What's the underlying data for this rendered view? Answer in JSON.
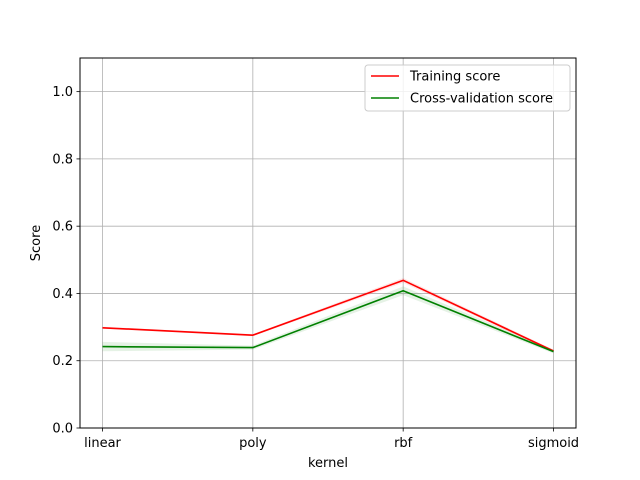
{
  "chart_data": {
    "type": "line",
    "xlabel": "kernel",
    "ylabel": "Score",
    "categories": [
      "linear",
      "poly",
      "rbf",
      "sigmoid"
    ],
    "ylim": [
      0.0,
      1.1
    ],
    "yticks": [
      "0.0",
      "0.2",
      "0.4",
      "0.6",
      "0.8",
      "1.0"
    ],
    "grid": true,
    "legend_position": "top-right",
    "series": [
      {
        "name": "Training score",
        "color": "#ff0000",
        "values": [
          0.298,
          0.276,
          0.439,
          0.229
        ],
        "band": [
          [
            0.295,
            0.301
          ],
          [
            0.273,
            0.279
          ],
          [
            0.432,
            0.446
          ],
          [
            0.225,
            0.233
          ]
        ]
      },
      {
        "name": "Cross-validation score",
        "color": "#008000",
        "values": [
          0.242,
          0.239,
          0.408,
          0.227
        ],
        "band": [
          [
            0.228,
            0.256
          ],
          [
            0.233,
            0.245
          ],
          [
            0.395,
            0.421
          ],
          [
            0.222,
            0.232
          ]
        ]
      }
    ]
  }
}
